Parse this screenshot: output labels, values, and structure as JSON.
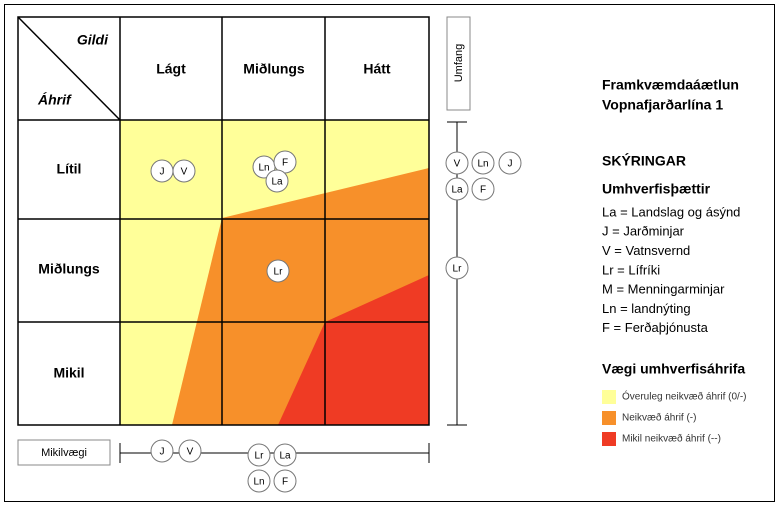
{
  "matrix": {
    "corner_top": "Gildi",
    "corner_bottom": "Áhrif",
    "columns": [
      "Lágt",
      "Miðlungs",
      "Hátt"
    ],
    "rows": [
      "Lítil",
      "Miðlungs",
      "Mikil"
    ],
    "markers": [
      "J",
      "V",
      "Ln",
      "F",
      "La",
      "Lr"
    ]
  },
  "umfang": {
    "label": "Umfang",
    "markers": [
      "V",
      "Ln",
      "J",
      "La",
      "F",
      "Lr"
    ]
  },
  "mikilvaegi": {
    "label": "Mikilvægi",
    "markers": [
      "J",
      "V",
      "Lr",
      "La",
      "Ln",
      "F"
    ]
  },
  "title": [
    "Framkvæmdaáætlun",
    "Vopnafjarðarlína 1"
  ],
  "legend": {
    "heading": "SKÝRINGAR",
    "factors_title": "Umhverfisþættir",
    "factors": [
      "La = Landslag og ásýnd",
      "J = Jarðminjar",
      "V = Vatnsvernd",
      "Lr = Lífríki",
      "M = Menningarminjar",
      "Ln = landnýting",
      "F = Ferðaþjónusta"
    ],
    "weight_title": "Vægi umhverfisáhrifa",
    "weights": [
      {
        "label": "Óveruleg neikvæð áhrif (0/-)",
        "color": "#ffff99"
      },
      {
        "label": "Neikvæð áhrif (-)",
        "color": "#f7902a"
      },
      {
        "label": "Mikil neikvæð áhrif (--)",
        "color": "#ef3b24"
      }
    ]
  }
}
